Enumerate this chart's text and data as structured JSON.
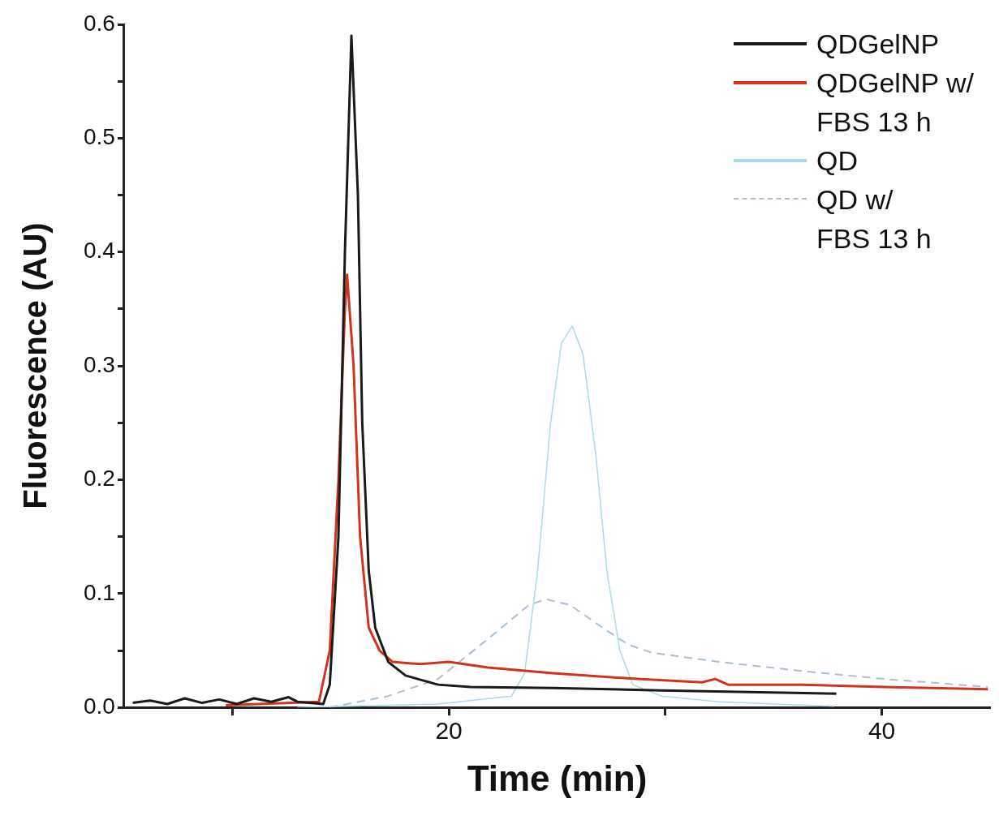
{
  "chart_data": {
    "type": "line",
    "xlabel": "Time (min)",
    "ylabel": "Fluorescence (AU)",
    "xlim": [
      5,
      45
    ],
    "xticks": [
      {
        "value": 10,
        "label": null
      },
      20,
      {
        "value": 30,
        "label": null
      },
      40
    ],
    "ylim": [
      0,
      0.6
    ],
    "yticks": [
      {
        "value": 0,
        "label": "0.0"
      },
      {
        "value": 0.05,
        "label": null
      },
      {
        "value": 0.1,
        "label": "0.1"
      },
      {
        "value": 0.15,
        "label": null
      },
      {
        "value": 0.2,
        "label": "0.2"
      },
      {
        "value": 0.25,
        "label": null
      },
      {
        "value": 0.3,
        "label": "0.3"
      },
      {
        "value": 0.35,
        "label": null
      },
      {
        "value": 0.4,
        "label": "0.4"
      },
      {
        "value": 0.45,
        "label": null
      },
      {
        "value": 0.5,
        "label": "0.5"
      },
      {
        "value": 0.55,
        "label": null
      },
      {
        "value": 0.6,
        "label": "0.6"
      }
    ],
    "grid": false,
    "legend": "top right",
    "marker": "none",
    "series": [
      {
        "name": "QDGelNP",
        "color": "#1a1a1a",
        "x": [
          5.4,
          6.2,
          7.0,
          7.8,
          8.6,
          9.4,
          10.2,
          11.0,
          11.8,
          12.6,
          13.0,
          14.2,
          14.5,
          14.9,
          15.2,
          15.5,
          15.8,
          16.0,
          16.3,
          16.6,
          17.2,
          18.0,
          19.5,
          21.0,
          24.8,
          29.8,
          37.9
        ],
        "values": [
          0.004,
          0.006,
          0.003,
          0.008,
          0.004,
          0.007,
          0.003,
          0.008,
          0.005,
          0.009,
          0.005,
          0.003,
          0.02,
          0.15,
          0.4,
          0.59,
          0.45,
          0.25,
          0.12,
          0.07,
          0.04,
          0.028,
          0.02,
          0.018,
          0.017,
          0.015,
          0.012
        ]
      },
      {
        "name": "QDGelNP w/\nFBS 13 h",
        "color": "#d2331f",
        "x": [
          9.7,
          14.0,
          14.5,
          14.9,
          15.2,
          15.3,
          15.6,
          15.9,
          16.3,
          16.8,
          17.4,
          18.7,
          20.0,
          21.8,
          24.8,
          28.7,
          31.7,
          32.3,
          32.9,
          36.3,
          40.1,
          44.9
        ],
        "values": [
          0.002,
          0.005,
          0.05,
          0.2,
          0.35,
          0.38,
          0.3,
          0.15,
          0.07,
          0.05,
          0.04,
          0.038,
          0.04,
          0.035,
          0.03,
          0.025,
          0.022,
          0.025,
          0.02,
          0.02,
          0.018,
          0.016
        ]
      },
      {
        "name": "QD",
        "color": "#a8dce8",
        "x": [
          13.0,
          19.5,
          22.9,
          23.5,
          24.1,
          24.7,
          25.2,
          25.7,
          26.2,
          26.8,
          27.3,
          27.9,
          28.5,
          29.8,
          32.5,
          37.8
        ],
        "values": [
          0.0,
          0.003,
          0.01,
          0.03,
          0.12,
          0.25,
          0.32,
          0.335,
          0.31,
          0.22,
          0.12,
          0.05,
          0.02,
          0.01,
          0.005,
          0.001
        ]
      },
      {
        "name": "QD w/\nFBS 13 h",
        "color": "#a9bfd6",
        "line_style": "dashed",
        "x": [
          14.5,
          17.2,
          19.5,
          21.8,
          23.7,
          24.5,
          25.6,
          27.1,
          28.3,
          29.4,
          32.5,
          36.3,
          40.1,
          44.9
        ],
        "values": [
          0.0,
          0.01,
          0.025,
          0.06,
          0.09,
          0.095,
          0.09,
          0.07,
          0.055,
          0.048,
          0.04,
          0.032,
          0.025,
          0.018
        ]
      }
    ]
  }
}
